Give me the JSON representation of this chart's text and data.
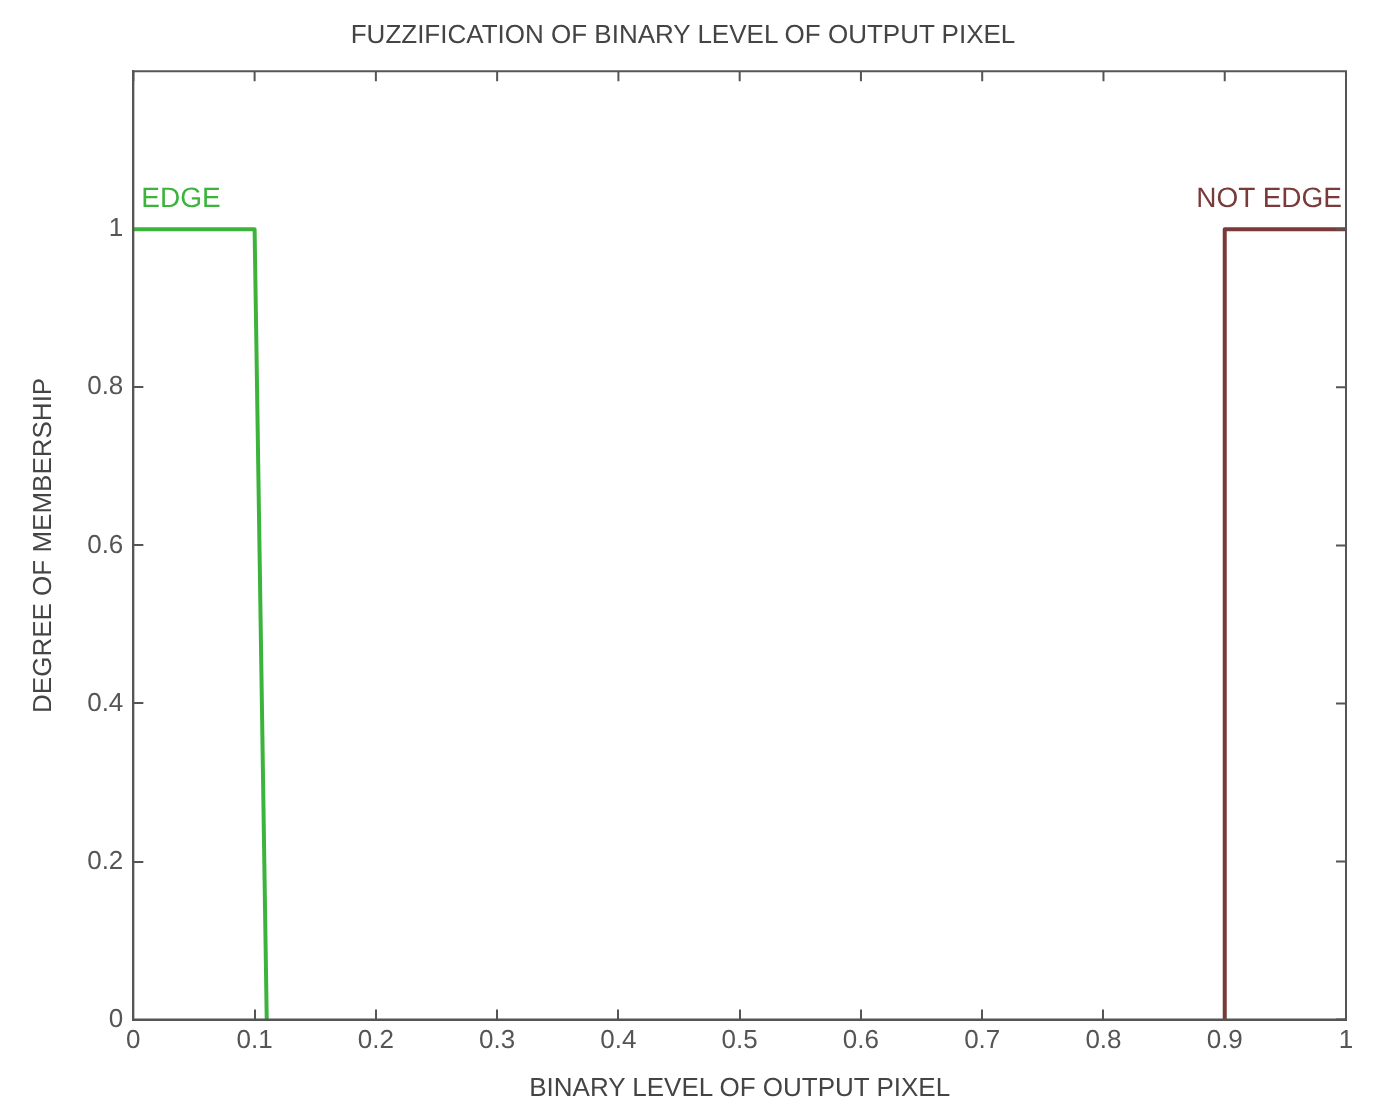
{
  "chart_data": {
    "type": "line",
    "title": "FUZZIFICATION OF BINARY LEVEL OF OUTPUT PIXEL",
    "xlabel": "BINARY LEVEL OF OUTPUT PIXEL",
    "ylabel": "DEGREE OF MEMBERSHIP",
    "xlim": [
      0,
      1
    ],
    "xticks": [
      0,
      0.1,
      0.2,
      0.3,
      0.4,
      0.5,
      0.6,
      0.7,
      0.8,
      0.9,
      1
    ],
    "ylim": [
      0,
      1.2
    ],
    "yticks": [
      0,
      0.2,
      0.4,
      0.6,
      0.8,
      1
    ],
    "marker": "none",
    "line_style": "solid",
    "series": [
      {
        "name": "EDGE",
        "color": "#3cb43c",
        "x": [
          0,
          0.1,
          0.11
        ],
        "values": [
          1,
          1,
          0
        ]
      },
      {
        "name": "NOT EDGE",
        "color": "#7a3a3a",
        "x": [
          0.9,
          0.9,
          1
        ],
        "values": [
          0,
          1,
          1
        ]
      }
    ]
  }
}
